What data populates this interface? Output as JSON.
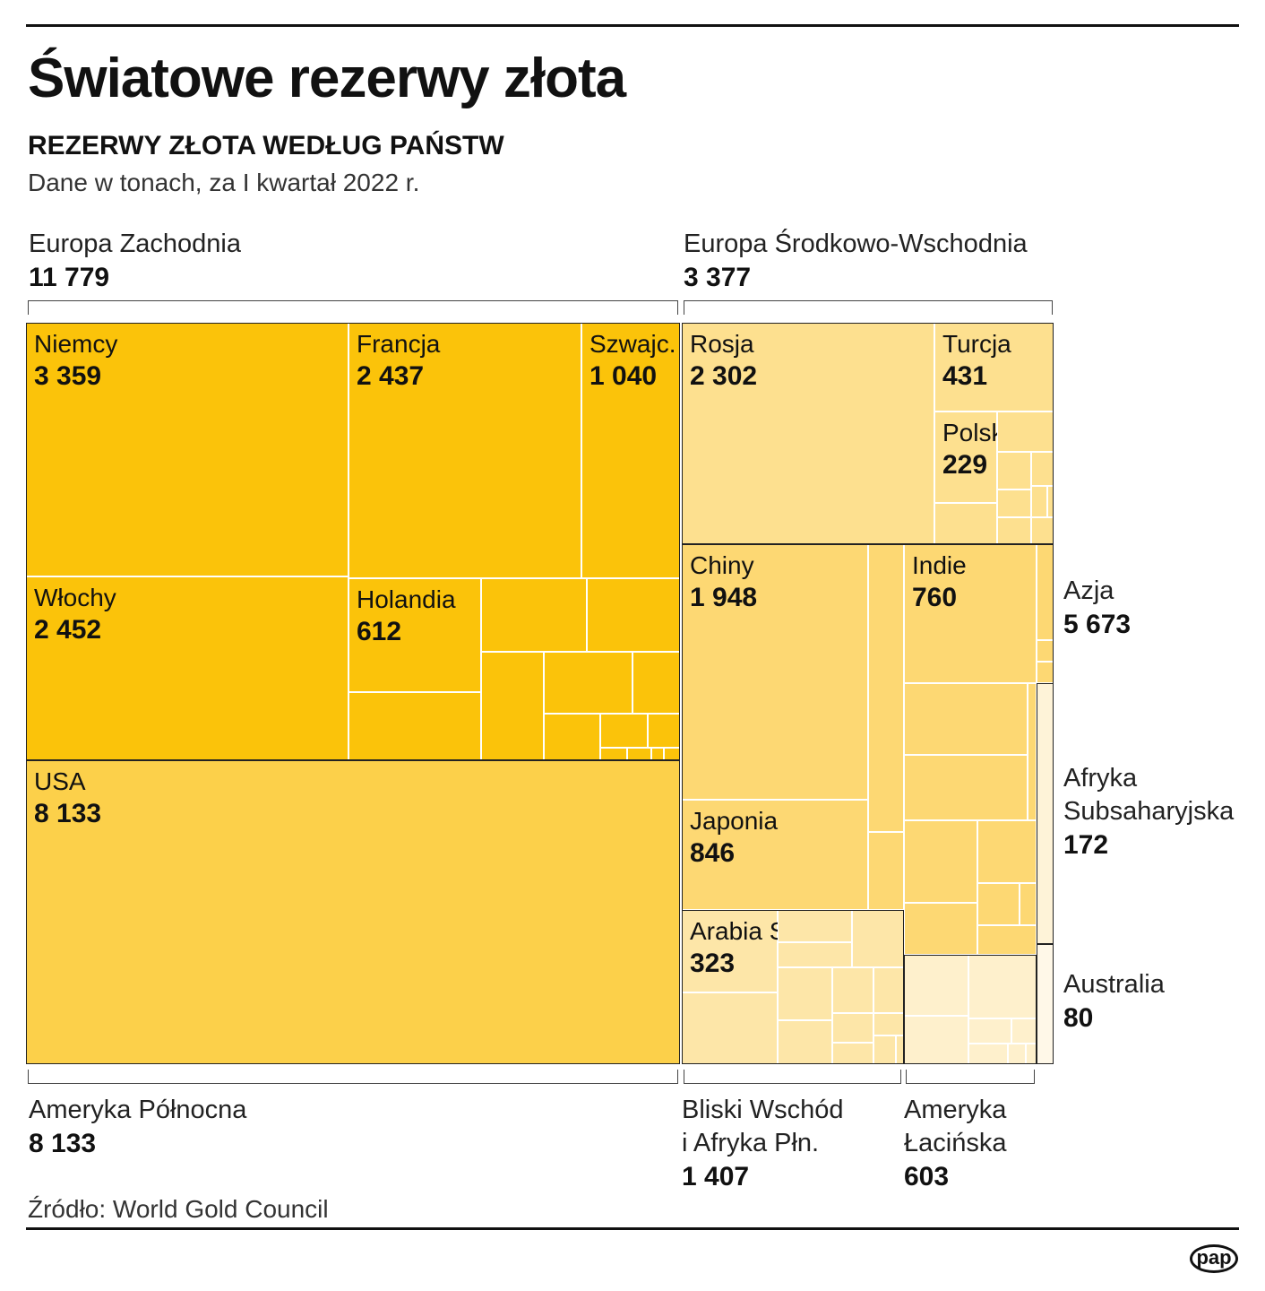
{
  "title": "Światowe rezerwy złota",
  "subtitle": "REZERWY ZŁOTA WEDŁUG PAŃSTW",
  "note": "Dane w tonach, za I kwartał 2022 r.",
  "source": "Źródło: World Gold Council",
  "logo": "pap",
  "chart_data": {
    "type": "treemap",
    "unit": "tony",
    "regions": [
      {
        "name": "Europa Zachodnia",
        "value_label": "11 779",
        "value": 11779,
        "color": "#FBC30A",
        "countries": [
          {
            "name": "Niemcy",
            "value_label": "3 359",
            "value": 3359
          },
          {
            "name": "Włochy",
            "value_label": "2 452",
            "value": 2452
          },
          {
            "name": "Francja",
            "value_label": "2 437",
            "value": 2437
          },
          {
            "name": "Szwajc.",
            "value_label": "1 040",
            "value": 1040
          },
          {
            "name": "Holandia",
            "value_label": "612",
            "value": 612
          }
        ]
      },
      {
        "name": "Ameryka Północna",
        "value_label": "8 133",
        "value": 8133,
        "color": "#FCD04A",
        "countries": [
          {
            "name": "USA",
            "value_label": "8 133",
            "value": 8133
          }
        ]
      },
      {
        "name": "Europa Środkowo-Wschodnia",
        "value_label": "3 377",
        "value": 3377,
        "color": "#FDE08F",
        "countries": [
          {
            "name": "Rosja",
            "value_label": "2 302",
            "value": 2302
          },
          {
            "name": "Turcja",
            "value_label": "431",
            "value": 431
          },
          {
            "name": "Polska",
            "value_label": "229",
            "value": 229
          }
        ]
      },
      {
        "name": "Azja",
        "value_label": "5 673",
        "value": 5673,
        "color": "#FDD873",
        "countries": [
          {
            "name": "Chiny",
            "value_label": "1 948",
            "value": 1948
          },
          {
            "name": "Japonia",
            "value_label": "846",
            "value": 846
          },
          {
            "name": "Indie",
            "value_label": "760",
            "value": 760
          }
        ]
      },
      {
        "name": "Bliski Wschód i Afryka Płn.",
        "lines": [
          "Bliski Wschód",
          "i Afryka Płn."
        ],
        "value_label": "1 407",
        "value": 1407,
        "color": "#FDE6A8",
        "countries": [
          {
            "name": "Arabia Saud.",
            "value_label": "323",
            "value": 323
          }
        ]
      },
      {
        "name": "Ameryka Łacińska",
        "lines": [
          "Ameryka",
          "Łacińska"
        ],
        "value_label": "603",
        "value": 603,
        "color": "#FEF0CC",
        "countries": []
      },
      {
        "name": "Afryka Subsaharyjska",
        "lines": [
          "Afryka",
          "Subsaharyjska"
        ],
        "value_label": "172",
        "value": 172,
        "color": "#FEF3D8",
        "countries": []
      },
      {
        "name": "Australia",
        "value_label": "80",
        "value": 80,
        "color": "#FFF8E8",
        "countries": []
      }
    ]
  }
}
